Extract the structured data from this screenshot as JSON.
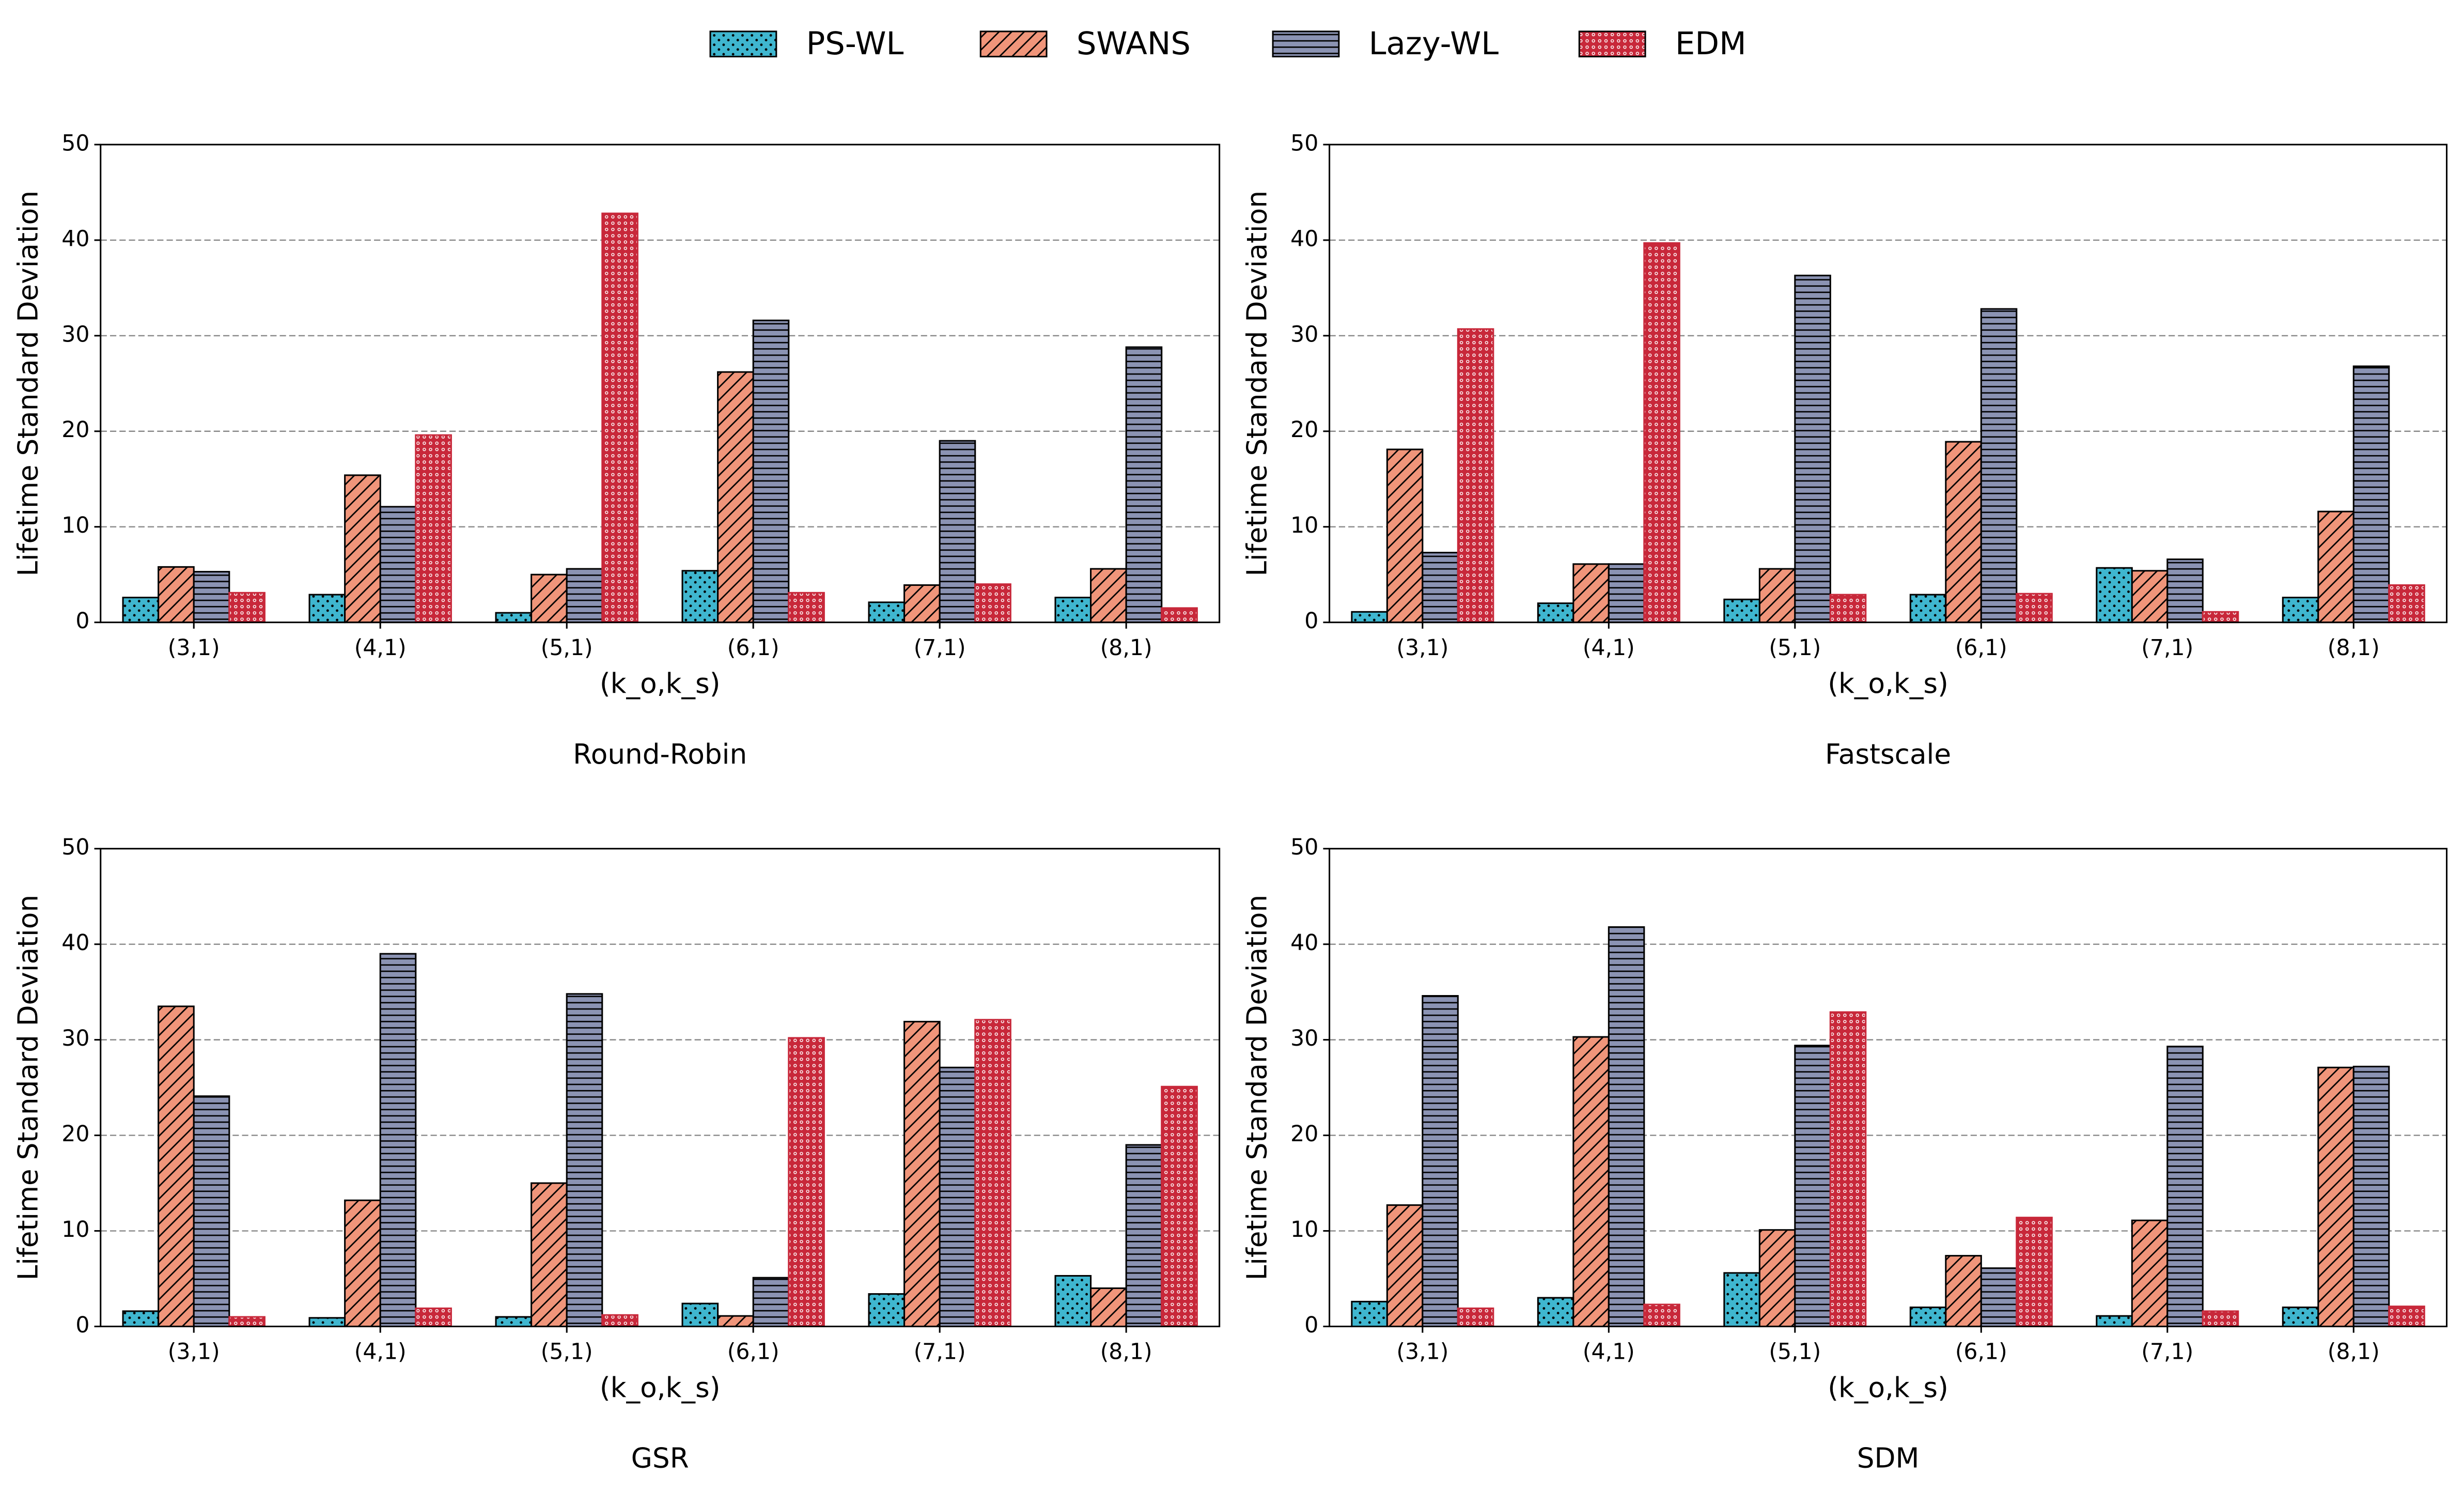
{
  "chart_data": [
    {
      "type": "bar",
      "title": "Round-Robin",
      "xlabel": "(k_o,k_s)",
      "ylabel": "Lifetime Standard Deviation",
      "categories": [
        "(3,1)",
        "(4,1)",
        "(5,1)",
        "(6,1)",
        "(7,1)",
        "(8,1)"
      ],
      "ylim": [
        0,
        50
      ],
      "yticks": [
        0,
        10,
        20,
        30,
        40,
        50
      ],
      "grid": true,
      "series": [
        {
          "name": "PS-WL",
          "color": "#3fb6cf",
          "hatch": "..",
          "values": [
            2.6,
            2.9,
            1.0,
            5.4,
            2.1,
            2.6
          ]
        },
        {
          "name": "SWANS",
          "color": "#f0957a",
          "hatch": "//",
          "values": [
            5.8,
            15.4,
            5.0,
            26.2,
            3.9,
            5.6
          ]
        },
        {
          "name": "Lazy-WL",
          "color": "#8b93b3",
          "hatch": "--",
          "values": [
            5.3,
            12.1,
            5.6,
            31.6,
            19.0,
            28.8
          ]
        },
        {
          "name": "EDM",
          "color": "#c8283a",
          "hatch": "oo",
          "values": [
            3.1,
            19.6,
            42.8,
            3.1,
            4.0,
            1.5
          ]
        }
      ]
    },
    {
      "type": "bar",
      "title": "Fastscale",
      "xlabel": "(k_o,k_s)",
      "ylabel": "Lifetime Standard Deviation",
      "categories": [
        "(3,1)",
        "(4,1)",
        "(5,1)",
        "(6,1)",
        "(7,1)",
        "(8,1)"
      ],
      "ylim": [
        0,
        50
      ],
      "yticks": [
        0,
        10,
        20,
        30,
        40,
        50
      ],
      "grid": true,
      "series": [
        {
          "name": "PS-WL",
          "color": "#3fb6cf",
          "hatch": "..",
          "values": [
            1.1,
            2.0,
            2.4,
            2.9,
            5.7,
            2.6
          ]
        },
        {
          "name": "SWANS",
          "color": "#f0957a",
          "hatch": "//",
          "values": [
            18.1,
            6.1,
            5.6,
            18.9,
            5.4,
            11.6
          ]
        },
        {
          "name": "Lazy-WL",
          "color": "#8b93b3",
          "hatch": "--",
          "values": [
            7.3,
            6.1,
            36.3,
            32.8,
            6.6,
            26.8
          ]
        },
        {
          "name": "EDM",
          "color": "#c8283a",
          "hatch": "oo",
          "values": [
            30.7,
            39.7,
            2.9,
            3.0,
            1.1,
            3.9
          ]
        }
      ]
    },
    {
      "type": "bar",
      "title": "GSR",
      "xlabel": "(k_o,k_s)",
      "ylabel": "Lifetime Standard Deviation",
      "categories": [
        "(3,1)",
        "(4,1)",
        "(5,1)",
        "(6,1)",
        "(7,1)",
        "(8,1)"
      ],
      "ylim": [
        0,
        50
      ],
      "yticks": [
        0,
        10,
        20,
        30,
        40,
        50
      ],
      "grid": true,
      "series": [
        {
          "name": "PS-WL",
          "color": "#3fb6cf",
          "hatch": "..",
          "values": [
            1.6,
            0.9,
            1.0,
            2.4,
            3.4,
            5.3
          ]
        },
        {
          "name": "SWANS",
          "color": "#f0957a",
          "hatch": "//",
          "values": [
            33.5,
            13.2,
            15.0,
            1.1,
            31.9,
            4.0
          ]
        },
        {
          "name": "Lazy-WL",
          "color": "#8b93b3",
          "hatch": "--",
          "values": [
            24.1,
            39.0,
            34.8,
            5.1,
            27.1,
            19.0
          ]
        },
        {
          "name": "EDM",
          "color": "#c8283a",
          "hatch": "oo",
          "values": [
            1.0,
            1.9,
            1.2,
            30.2,
            32.1,
            25.1
          ]
        }
      ]
    },
    {
      "type": "bar",
      "title": "SDM",
      "xlabel": "(k_o,k_s)",
      "ylabel": "Lifetime Standard Deviation",
      "categories": [
        "(3,1)",
        "(4,1)",
        "(5,1)",
        "(6,1)",
        "(7,1)",
        "(8,1)"
      ],
      "ylim": [
        0,
        50
      ],
      "yticks": [
        0,
        10,
        20,
        30,
        40,
        50
      ],
      "grid": true,
      "series": [
        {
          "name": "PS-WL",
          "color": "#3fb6cf",
          "hatch": "..",
          "values": [
            2.6,
            3.0,
            5.6,
            2.0,
            1.1,
            2.0
          ]
        },
        {
          "name": "SWANS",
          "color": "#f0957a",
          "hatch": "//",
          "values": [
            12.7,
            30.3,
            10.1,
            7.4,
            11.1,
            27.1
          ]
        },
        {
          "name": "Lazy-WL",
          "color": "#8b93b3",
          "hatch": "--",
          "values": [
            34.6,
            41.8,
            29.4,
            6.1,
            29.3,
            27.2
          ]
        },
        {
          "name": "EDM",
          "color": "#c8283a",
          "hatch": "oo",
          "values": [
            1.9,
            2.3,
            32.9,
            11.4,
            1.6,
            2.1
          ]
        }
      ]
    }
  ]
}
